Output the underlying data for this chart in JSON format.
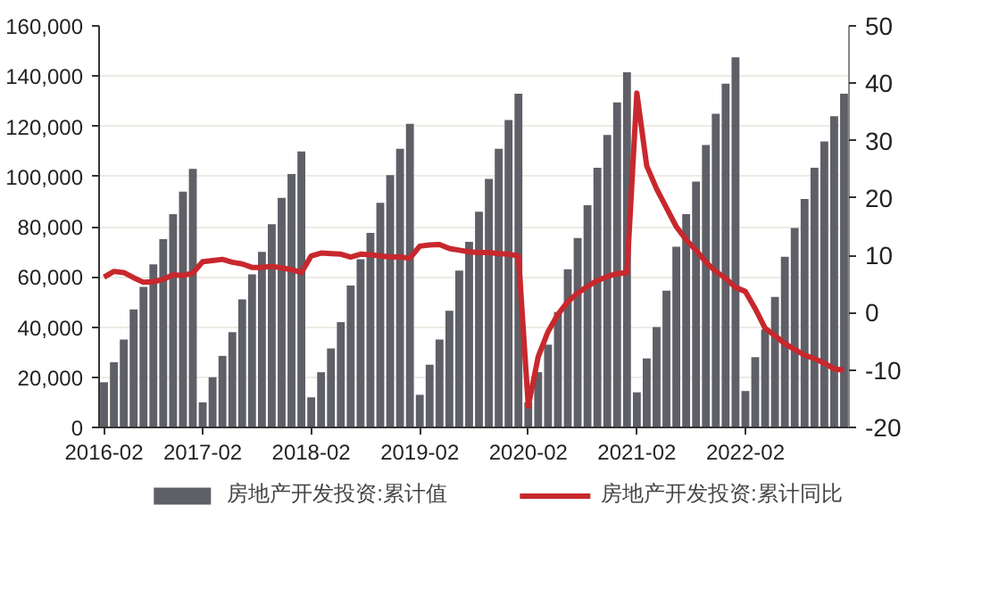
{
  "chart_data": {
    "type": "bar",
    "categories": [
      "2016-02",
      null,
      null,
      null,
      null,
      null,
      null,
      null,
      null,
      null,
      "2017-02",
      null,
      null,
      null,
      null,
      null,
      null,
      null,
      null,
      null,
      null,
      "2018-02",
      null,
      null,
      null,
      null,
      null,
      null,
      null,
      null,
      null,
      null,
      "2019-02",
      null,
      null,
      null,
      null,
      null,
      null,
      null,
      null,
      null,
      null,
      "2020-02",
      null,
      null,
      null,
      null,
      null,
      null,
      null,
      null,
      null,
      null,
      "2021-02",
      null,
      null,
      null,
      null,
      null,
      null,
      null,
      null,
      null,
      null,
      "2022-02",
      null,
      null,
      null,
      null,
      null,
      null,
      null,
      null,
      null,
      null
    ],
    "series": [
      {
        "name": "房地产开发投资:累计值",
        "color": "#5f5f67",
        "values": [
          18000,
          26000,
          35000,
          47000,
          56000,
          65000,
          75000,
          85000,
          94000,
          103000,
          10000,
          20000,
          28500,
          38000,
          51000,
          61000,
          70000,
          81000,
          91500,
          101000,
          110000,
          12000,
          22000,
          31500,
          42000,
          56500,
          67000,
          77500,
          89500,
          100500,
          111000,
          121000,
          13000,
          25000,
          35000,
          46500,
          62500,
          74000,
          86000,
          99000,
          111000,
          122500,
          133000,
          10000,
          22000,
          33000,
          46000,
          63000,
          75500,
          88500,
          103500,
          116500,
          129500,
          141500,
          14000,
          27500,
          40000,
          54500,
          72000,
          85000,
          98000,
          112500,
          125000,
          137000,
          147500,
          14500,
          28000,
          39000,
          52000,
          68000,
          79500,
          91000,
          103500,
          114000,
          124000,
          133000
        ]
      },
      {
        "name": "房地产开发投资:累计同比",
        "type": "line",
        "axis": "y2",
        "color": "#c8282d",
        "values": [
          6.2,
          7.2,
          7.0,
          6.1,
          5.3,
          5.4,
          5.8,
          6.6,
          6.5,
          6.9,
          8.9,
          9.1,
          9.3,
          8.8,
          8.5,
          7.9,
          7.9,
          8.1,
          7.8,
          7.5,
          7.0,
          9.9,
          10.4,
          10.3,
          10.2,
          9.7,
          10.2,
          10.1,
          9.9,
          9.7,
          9.7,
          9.5,
          11.6,
          11.8,
          11.9,
          11.2,
          10.9,
          10.6,
          10.5,
          10.5,
          10.3,
          10.2,
          9.9,
          -16.3,
          -7.7,
          -3.3,
          -0.3,
          1.9,
          3.4,
          4.6,
          5.6,
          6.3,
          6.8,
          7.0,
          38.3,
          25.6,
          21.6,
          18.3,
          15.0,
          12.7,
          10.9,
          8.8,
          7.2,
          6.0,
          4.4,
          3.7,
          0.7,
          -2.7,
          -4.0,
          -5.4,
          -6.4,
          -7.4,
          -8.0,
          -8.8,
          -9.8,
          -10.0
        ]
      }
    ],
    "ylim": [
      0,
      160000
    ],
    "yticks": [
      {
        "value": 0,
        "label": "0"
      },
      {
        "value": 20000,
        "label": "20,000"
      },
      {
        "value": 40000,
        "label": "40,000"
      },
      {
        "value": 60000,
        "label": "60,000"
      },
      {
        "value": 80000,
        "label": "80,000"
      },
      {
        "value": 100000,
        "label": "100,000"
      },
      {
        "value": 120000,
        "label": "120,000"
      },
      {
        "value": 140000,
        "label": "140,000"
      },
      {
        "value": 160000,
        "label": "160,000"
      }
    ],
    "y2lim": [
      -20,
      50
    ],
    "y2ticks": [
      -20,
      -10,
      0,
      10,
      20,
      30,
      40,
      50
    ],
    "grid": "y",
    "legend": "bottom"
  }
}
